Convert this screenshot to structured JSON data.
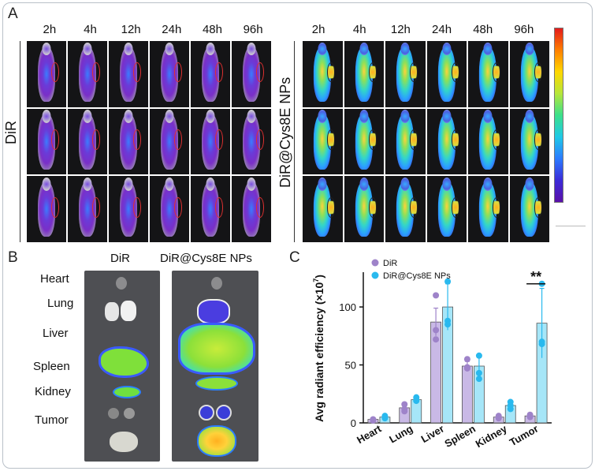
{
  "panels": {
    "a": "A",
    "b": "B",
    "c": "C"
  },
  "panel_a": {
    "time_points": [
      "2h",
      "4h",
      "12h",
      "24h",
      "48h",
      "96h"
    ],
    "group_left": "DiR",
    "group_right": "DiR@Cys8E NPs",
    "colorbar_colors": [
      "#e31a1c",
      "#ff7f00",
      "#ffd700",
      "#3ce08a",
      "#2b7bff",
      "#5a10a8"
    ]
  },
  "panel_b": {
    "col_dir": "DiR",
    "col_dircys": "DiR@Cys8E NPs",
    "organs": [
      "Heart",
      "Lung",
      "Liver",
      "Spleen",
      "Kidney",
      "Tumor"
    ]
  },
  "chart_data": {
    "type": "bar",
    "categories": [
      "Heart",
      "Lung",
      "Liver",
      "Spleen",
      "Kidney",
      "Tumor"
    ],
    "series": [
      {
        "name": "DiR",
        "values": [
          3,
          13,
          87,
          49,
          5,
          6
        ],
        "errors": [
          1,
          3,
          12,
          4,
          1,
          1
        ],
        "points": [
          [
            2,
            3,
            3
          ],
          [
            10,
            12,
            16
          ],
          [
            110,
            80,
            72
          ],
          [
            55,
            48,
            47
          ],
          [
            5,
            6,
            4
          ],
          [
            6,
            5,
            7
          ]
        ],
        "color": "#c9b9e6",
        "point_color": "#9e83c9"
      },
      {
        "name": "DiR@Cys8E NPs",
        "values": [
          5,
          20,
          100,
          49,
          15,
          86
        ],
        "errors": [
          1,
          3,
          20,
          10,
          3,
          30
        ],
        "points": [
          [
            4,
            5,
            6
          ],
          [
            19,
            20,
            22
          ],
          [
            122,
            88,
            85
          ],
          [
            58,
            43,
            38
          ],
          [
            18,
            12,
            15
          ],
          [
            120,
            70,
            68
          ]
        ],
        "color": "#a6e6f8",
        "point_color": "#29b9ee"
      }
    ],
    "ylabel": "Avg radiant  efficiency (×10",
    "ylabel_exp": "7",
    "ylabel_close": ")",
    "ylim": [
      0,
      130
    ],
    "yticks": [
      "0",
      "50",
      "100"
    ],
    "significance": {
      "category": "Tumor",
      "label": "**"
    },
    "legend_position": "top-left"
  }
}
